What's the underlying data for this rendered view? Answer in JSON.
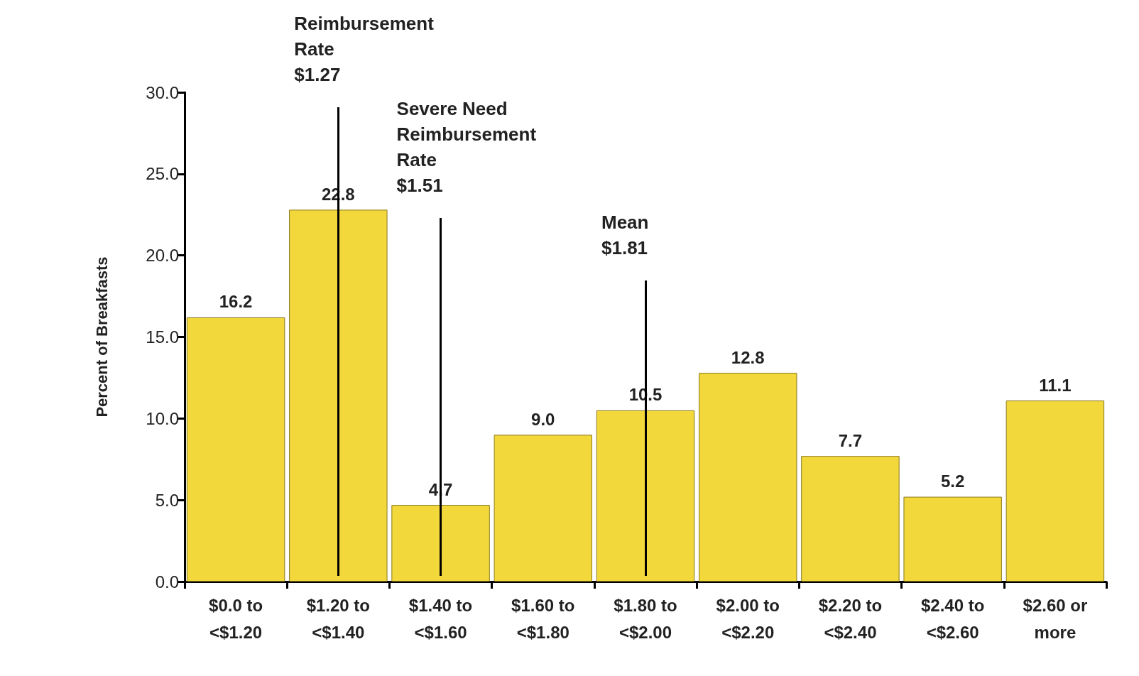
{
  "chart_data": {
    "type": "bar",
    "ylabel": "Percent of Breakfasts",
    "categories": [
      "$0.0 to\n<$1.20",
      "$1.20 to\n<$1.40",
      "$1.40 to\n<$1.60",
      "$1.60 to\n<$1.80",
      "$1.80 to\n<$2.00",
      "$2.00 to\n<$2.20",
      "$2.20 to\n<$2.40",
      "$2.40 to\n<$2.60",
      "$2.60 or\nmore"
    ],
    "values": [
      16.2,
      22.8,
      4.7,
      9.0,
      10.5,
      12.8,
      7.7,
      5.2,
      11.1
    ],
    "color": "#f2d83b",
    "value_labels": [
      "16.2",
      "22.8",
      "4.7",
      "9.0",
      "10.5",
      "12.8",
      "7.7",
      "5.2",
      "11.1"
    ],
    "ylim": [
      0,
      30
    ],
    "yticks": [
      {
        "value": 0,
        "label": "0.0"
      },
      {
        "value": 5,
        "label": "5.0"
      },
      {
        "value": 10,
        "label": "10.0"
      },
      {
        "value": 15,
        "label": "15.0"
      },
      {
        "value": 20,
        "label": "20.0"
      },
      {
        "value": 25,
        "label": "25.0"
      },
      {
        "value": 30,
        "label": "30.0"
      }
    ],
    "ref_lines": [
      {
        "axis": "x",
        "value": "$1.20 to\n<$1.40",
        "label": "Reimbursement\nRate\n$1.27",
        "color": "#000000"
      },
      {
        "axis": "x",
        "value": "$1.40 to\n<$1.60",
        "label": "Severe Need\nReimbursement\nRate\n$1.51",
        "color": "#000000"
      },
      {
        "axis": "x",
        "value": "$1.80 to\n<$2.00",
        "label": "Mean\n$1.81",
        "color": "#000000"
      }
    ]
  }
}
